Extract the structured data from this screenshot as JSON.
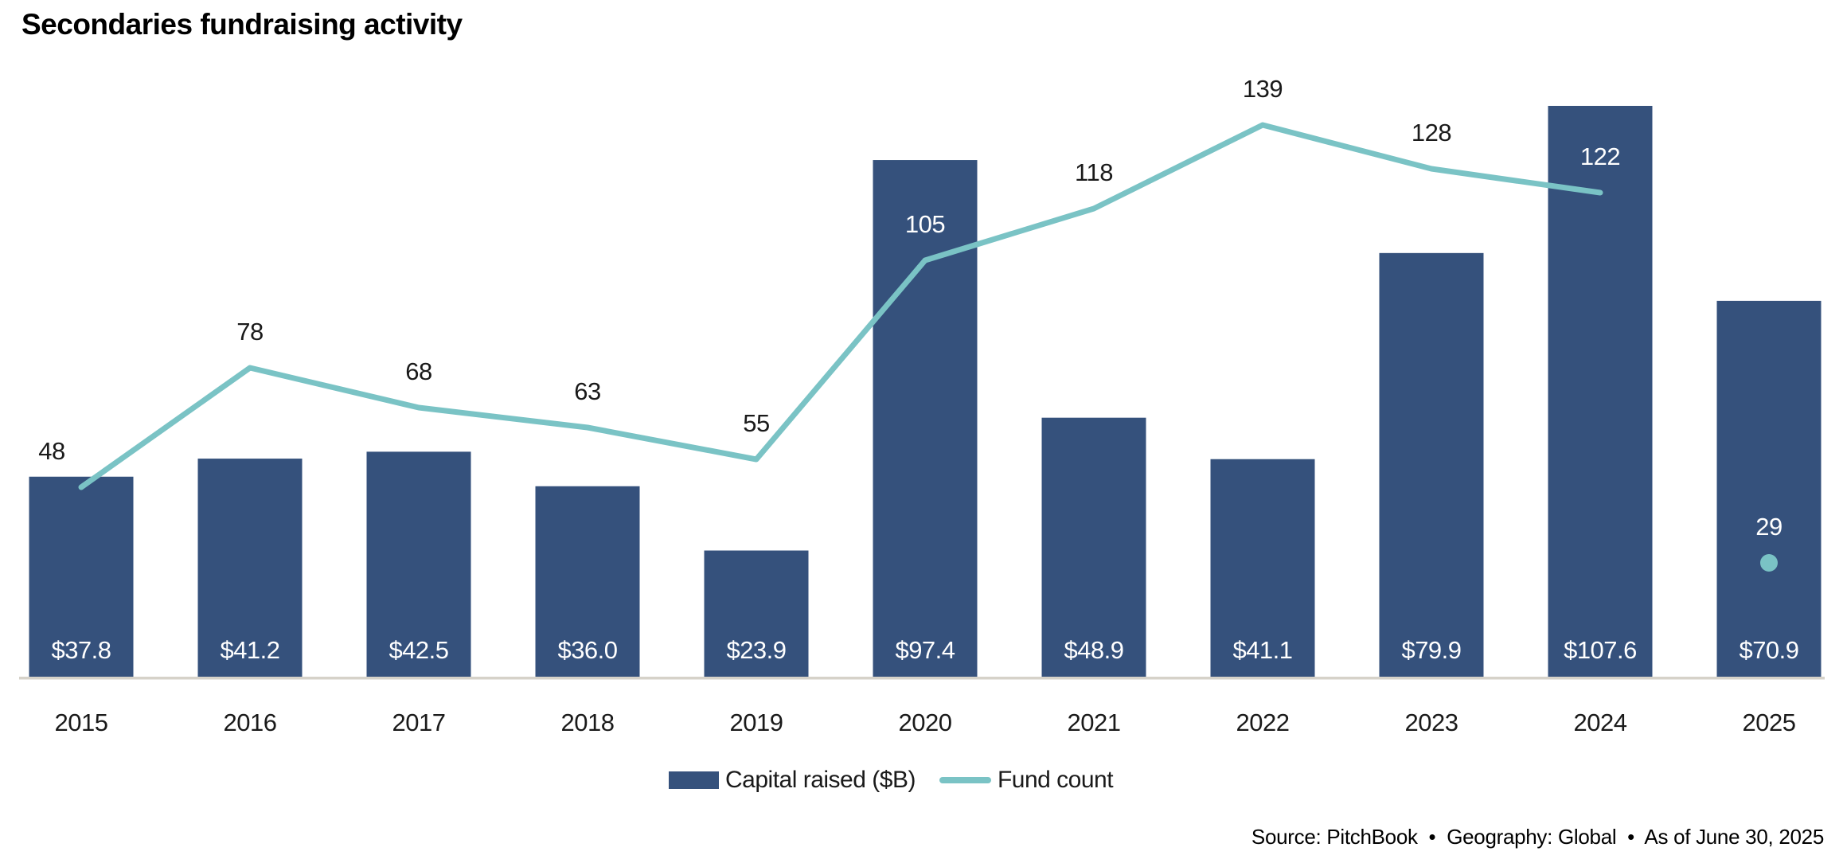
{
  "title": "Secondaries fundraising activity",
  "legend": {
    "bar_label": "Capital raised ($B)",
    "line_label": "Fund count"
  },
  "footer": {
    "source_line": "Source: PitchBook  •  Geography: Global  •  As of June 30, 2025"
  },
  "colors": {
    "bar": "#35517C",
    "line": "#7AC3C5",
    "axis": "#D6D2C9",
    "text": "#1A1A1A",
    "label_on_bar": "#FFFFFF"
  },
  "chart_data": {
    "type": "bar+line",
    "title": "Secondaries fundraising activity",
    "categories": [
      "2015",
      "2016",
      "2017",
      "2018",
      "2019",
      "2020",
      "2021",
      "2022",
      "2023",
      "2024",
      "2025"
    ],
    "series": [
      {
        "name": "Capital raised ($B)",
        "type": "bar",
        "color": "#35517C",
        "values": [
          37.8,
          41.2,
          42.5,
          36.0,
          23.9,
          97.4,
          48.9,
          41.1,
          79.9,
          107.6,
          70.9
        ],
        "labels": [
          "$37.8",
          "$41.2",
          "$42.5",
          "$36.0",
          "$23.9",
          "$97.4",
          "$48.9",
          "$41.1",
          "$79.9",
          "$107.6",
          "$70.9"
        ]
      },
      {
        "name": "Fund count",
        "type": "line",
        "color": "#7AC3C5",
        "values": [
          48,
          78,
          68,
          63,
          55,
          105,
          118,
          139,
          128,
          122,
          29
        ],
        "labels": [
          "48",
          "78",
          "68",
          "63",
          "55",
          "105",
          "118",
          "139",
          "128",
          "122",
          "29"
        ],
        "last_point_style": "dot-marker-only"
      }
    ],
    "xlabel": "",
    "ylabel": "",
    "y_axes_hidden": true,
    "gridlines": false,
    "value_labels_shown": true,
    "legend_position": "bottom-center",
    "source_note": "Source: PitchBook  •  Geography: Global  •  As of June 30, 2025"
  }
}
